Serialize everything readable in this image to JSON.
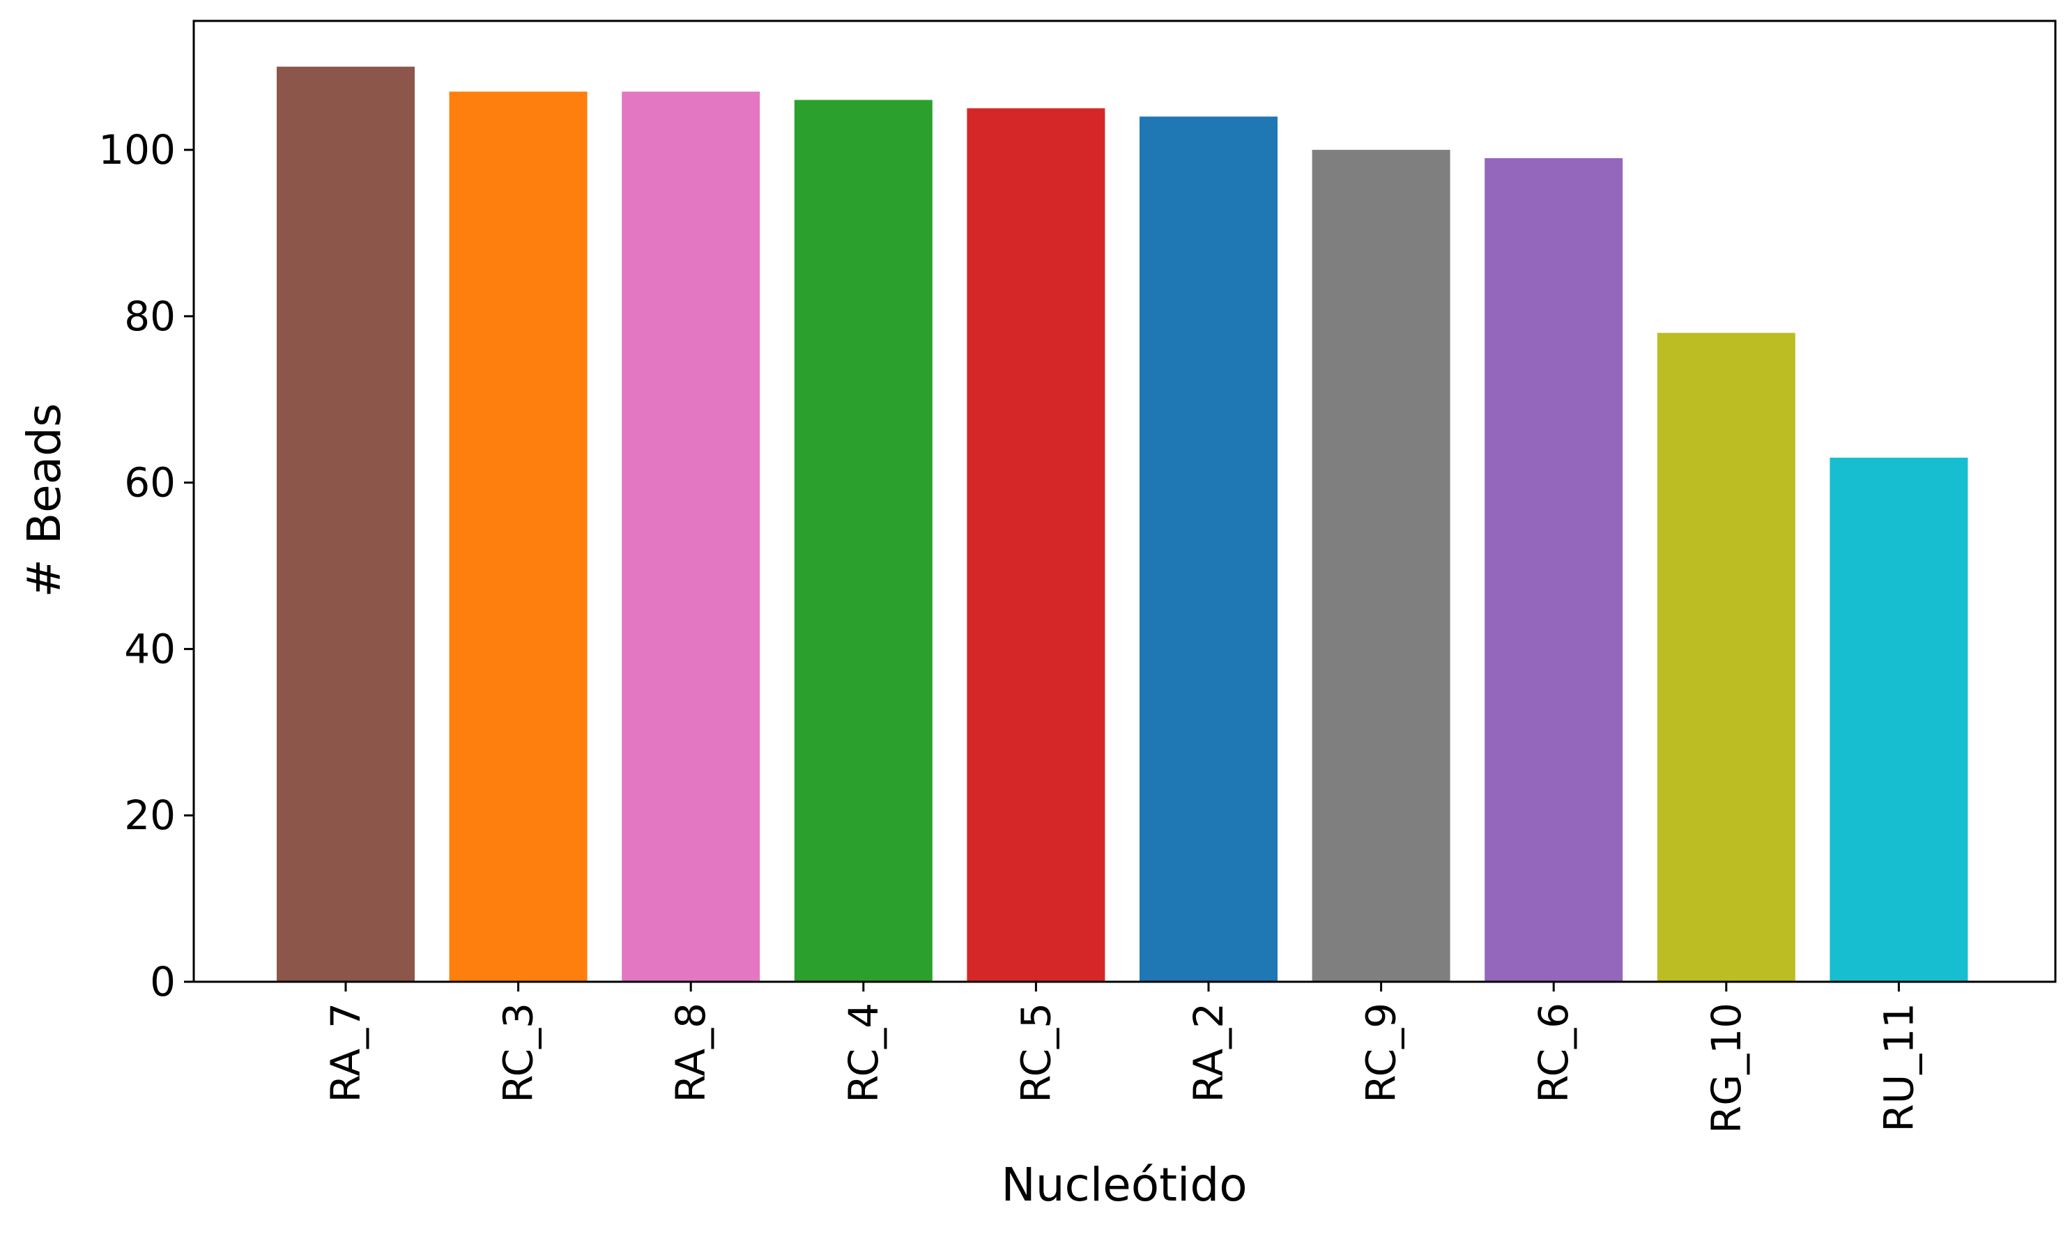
{
  "chart_data": {
    "type": "bar",
    "title": "",
    "xlabel": "Nucleótido",
    "ylabel": "# Beads",
    "categories": [
      "RA_7",
      "RC_3",
      "RA_8",
      "RC_4",
      "RC_5",
      "RA_2",
      "RC_9",
      "RC_6",
      "RG_10",
      "RU_11"
    ],
    "values": [
      110,
      107,
      107,
      106,
      105,
      104,
      100,
      99,
      78,
      63
    ],
    "colors": [
      "#8c564b",
      "#ff7f0e",
      "#e377c2",
      "#2ca02c",
      "#d62728",
      "#1f77b4",
      "#7f7f7f",
      "#9467bd",
      "#bcbd22",
      "#17becf"
    ],
    "ylim": [
      0,
      115.5
    ],
    "yticks": [
      0,
      20,
      40,
      60,
      80,
      100
    ],
    "grid": false,
    "legend": "none"
  }
}
